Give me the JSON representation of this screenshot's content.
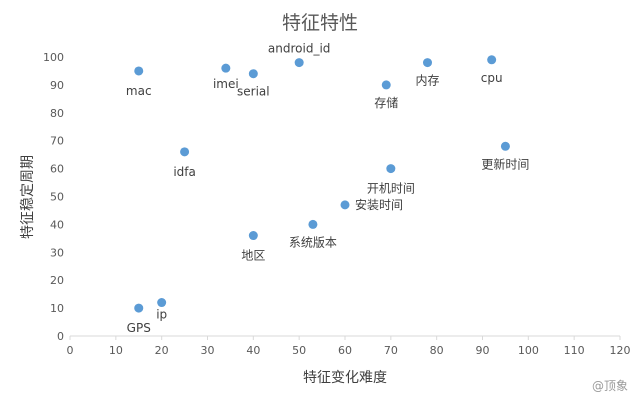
{
  "chart_data": {
    "type": "scatter",
    "title": "特征特性",
    "xlabel": "特征变化难度",
    "ylabel": "特征稳定周期",
    "xlim": [
      0,
      120
    ],
    "ylim": [
      0,
      100
    ],
    "x_ticks": [
      0,
      10,
      20,
      30,
      40,
      50,
      60,
      70,
      80,
      90,
      100,
      110,
      120
    ],
    "y_ticks": [
      0,
      10,
      20,
      30,
      40,
      50,
      60,
      70,
      80,
      90,
      100
    ],
    "grid": false,
    "legend": "none",
    "marker_color": "#5B9BD5",
    "points": [
      {
        "label": "mac",
        "x": 15,
        "y": 95
      },
      {
        "label": "imei",
        "x": 34,
        "y": 96
      },
      {
        "label": "serial",
        "x": 40,
        "y": 94
      },
      {
        "label": "android_id",
        "x": 50,
        "y": 98
      },
      {
        "label": "存储",
        "x": 69,
        "y": 90
      },
      {
        "label": "内存",
        "x": 78,
        "y": 98
      },
      {
        "label": "cpu",
        "x": 92,
        "y": 99
      },
      {
        "label": "idfa",
        "x": 25,
        "y": 66
      },
      {
        "label": "更新时间",
        "x": 95,
        "y": 68
      },
      {
        "label": "开机时间",
        "x": 70,
        "y": 60
      },
      {
        "label": "安装时间",
        "x": 60,
        "y": 47
      },
      {
        "label": "系统版本",
        "x": 53,
        "y": 40
      },
      {
        "label": "地区",
        "x": 40,
        "y": 36
      },
      {
        "label": "GPS",
        "x": 15,
        "y": 10
      },
      {
        "label": "ip",
        "x": 20,
        "y": 12
      }
    ]
  },
  "watermark": "@顶象"
}
